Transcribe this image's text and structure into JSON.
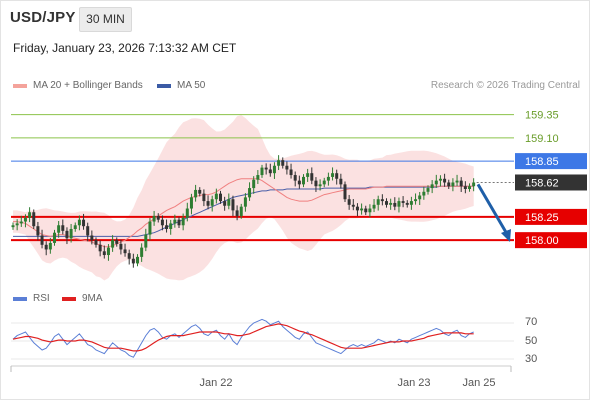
{
  "header": {
    "pair": "USD/JPY",
    "timeframe": "30 MIN"
  },
  "timestamp": "Friday, January 23, 2026 7:13:32 AM CET",
  "legend": {
    "ma20": "MA 20 + Bollinger Bands",
    "ma50": "MA 50"
  },
  "credit": "Research © 2026 Trading Central",
  "rsi_legend": {
    "rsi": "RSI",
    "ma9": "9MA"
  },
  "colors": {
    "bull": "#2e7d32",
    "bear": "#333333",
    "ma20": "#f08080",
    "ma50": "#4a5ea8",
    "resistance": "#3d78e6",
    "support": "#e60000",
    "target": "#8bc34a",
    "arrow": "#1f5fa8"
  },
  "chart_data": [
    {
      "type": "candlestick",
      "title": "USD/JPY 30 MIN",
      "ylim": [
        157.55,
        159.55
      ],
      "x_ticks": [
        "Jan 22",
        "Jan 23",
        "Jan 25"
      ],
      "levels": [
        {
          "value": 159.35,
          "label": "159.35",
          "kind": "target"
        },
        {
          "value": 159.1,
          "label": "159.10",
          "kind": "target"
        },
        {
          "value": 158.85,
          "label": "158.85",
          "kind": "resistance"
        },
        {
          "value": 158.62,
          "label": "158.62",
          "kind": "last"
        },
        {
          "value": 158.25,
          "label": "158.25",
          "kind": "support"
        },
        {
          "value": 158.0,
          "label": "158.00",
          "kind": "support"
        }
      ],
      "arrow": {
        "from": 158.6,
        "to": 157.98,
        "direction": "down"
      },
      "series": [
        {
          "name": "Price",
          "values": [
            158.16,
            158.18,
            158.2,
            158.24,
            158.3,
            158.15,
            158.05,
            157.95,
            157.9,
            157.97,
            158.08,
            158.16,
            158.1,
            158.02,
            158.12,
            158.16,
            158.22,
            158.15,
            158.05,
            158.0,
            157.95,
            157.88,
            157.84,
            157.92,
            158.0,
            157.96,
            157.9,
            157.86,
            157.8,
            157.75,
            157.82,
            157.92,
            158.06,
            158.2,
            158.26,
            158.22,
            158.16,
            158.12,
            158.18,
            158.22,
            158.16,
            158.24,
            158.34,
            158.46,
            158.54,
            158.5,
            158.42,
            158.37,
            158.44,
            158.5,
            158.42,
            158.37,
            158.44,
            158.32,
            158.26,
            158.36,
            158.46,
            158.56,
            158.65,
            158.7,
            158.78,
            158.76,
            158.72,
            158.8,
            158.86,
            158.8,
            158.76,
            158.7,
            158.64,
            158.6,
            158.68,
            158.72,
            158.64,
            158.58,
            158.6,
            158.64,
            158.68,
            158.72,
            158.66,
            158.6,
            158.44,
            158.38,
            158.36,
            158.32,
            158.34,
            158.3,
            158.34,
            158.38,
            158.44,
            158.42,
            158.38,
            158.4,
            158.36,
            158.42,
            158.4,
            158.38,
            158.42,
            158.44,
            158.48,
            158.52,
            158.56,
            158.6,
            158.64,
            158.66,
            158.62,
            158.58,
            158.62,
            158.64,
            158.58,
            158.55,
            158.58,
            158.62
          ]
        },
        {
          "name": "MA 20",
          "values": [
            158.2,
            158.2,
            158.19,
            158.18,
            158.15,
            158.12,
            158.09,
            158.06,
            158.05,
            158.04,
            158.05,
            158.06,
            158.06,
            158.05,
            158.03,
            158.02,
            158.01,
            158.0,
            157.99,
            157.98,
            157.96,
            157.95,
            157.93,
            157.93,
            157.94,
            157.96,
            157.98,
            158.0,
            158.03,
            158.06,
            158.1,
            158.13,
            158.17,
            158.2,
            158.23,
            158.26,
            158.29,
            158.32,
            158.34,
            158.36,
            158.39,
            158.42,
            158.44,
            158.46,
            158.47,
            158.48,
            158.49,
            158.49,
            158.5,
            158.52,
            158.55,
            158.58,
            158.61,
            158.63,
            158.65,
            158.66,
            158.66,
            158.66,
            158.66,
            158.66,
            158.64,
            158.61,
            158.58,
            158.55,
            158.52,
            158.49,
            158.46,
            158.44,
            158.43,
            158.42,
            158.42,
            158.42,
            158.43,
            158.45,
            158.47,
            158.49,
            158.5,
            158.51,
            158.52,
            158.53,
            158.54,
            158.55,
            158.55,
            158.55,
            158.55,
            158.55,
            158.56,
            158.57,
            158.57,
            158.57,
            158.58,
            158.58,
            158.58,
            158.58,
            158.58,
            158.58,
            158.58,
            158.58,
            158.58,
            158.58,
            158.58,
            158.58,
            158.58,
            158.58,
            158.58,
            158.58,
            158.58,
            158.58,
            158.58,
            158.58,
            158.58,
            158.58
          ]
        },
        {
          "name": "MA 50",
          "values": [
            158.04,
            158.04,
            158.04,
            158.04,
            158.04,
            158.04,
            158.04,
            158.04,
            158.04,
            158.04,
            158.04,
            158.04,
            158.04,
            158.04,
            158.04,
            158.04,
            158.04,
            158.04,
            158.04,
            158.04,
            158.04,
            158.04,
            158.04,
            158.04,
            158.04,
            158.04,
            158.04,
            158.04,
            158.04,
            158.04,
            158.04,
            158.05,
            158.06,
            158.07,
            158.08,
            158.1,
            158.12,
            158.14,
            158.16,
            158.18,
            158.2,
            158.22,
            158.24,
            158.26,
            158.28,
            158.3,
            158.32,
            158.34,
            158.36,
            158.38,
            158.4,
            158.42,
            158.44,
            158.46,
            158.47,
            158.48,
            158.49,
            158.5,
            158.51,
            158.52,
            158.53,
            158.53,
            158.54,
            158.54,
            158.54,
            158.54,
            158.55,
            158.55,
            158.55,
            158.55,
            158.55,
            158.55,
            158.55,
            158.55,
            158.55,
            158.56,
            158.56,
            158.56,
            158.56,
            158.56,
            158.56,
            158.56,
            158.56,
            158.56,
            158.56,
            158.56,
            158.57,
            158.57,
            158.57,
            158.57,
            158.57,
            158.57,
            158.57,
            158.57,
            158.57,
            158.57,
            158.57,
            158.57,
            158.57,
            158.57,
            158.57,
            158.57,
            158.57,
            158.58,
            158.58,
            158.58,
            158.58,
            158.58,
            158.58,
            158.58,
            158.58,
            158.58
          ]
        }
      ]
    },
    {
      "type": "line",
      "title": "RSI",
      "ylim": [
        20,
        80
      ],
      "y_ticks": [
        "70",
        "50",
        "30"
      ],
      "series": [
        {
          "name": "RSI",
          "values": [
            52,
            56,
            58,
            60,
            54,
            48,
            44,
            40,
            42,
            48,
            55,
            58,
            52,
            46,
            50,
            54,
            58,
            52,
            46,
            44,
            40,
            38,
            36,
            42,
            48,
            44,
            40,
            38,
            34,
            32,
            40,
            48,
            56,
            62,
            64,
            60,
            54,
            52,
            56,
            58,
            54,
            58,
            62,
            66,
            68,
            64,
            58,
            56,
            60,
            62,
            56,
            52,
            58,
            50,
            46,
            54,
            60,
            66,
            70,
            72,
            74,
            72,
            68,
            70,
            72,
            66,
            62,
            58,
            54,
            52,
            58,
            60,
            54,
            48,
            46,
            44,
            42,
            40,
            38,
            36,
            40,
            44,
            46,
            44,
            46,
            44,
            46,
            48,
            52,
            50,
            48,
            50,
            48,
            52,
            50,
            48,
            52,
            54,
            56,
            58,
            60,
            62,
            64,
            62,
            58,
            56,
            60,
            62,
            56,
            54,
            58,
            60
          ]
        },
        {
          "name": "9MA",
          "values": [
            52,
            53,
            54,
            55,
            55,
            54,
            53,
            51,
            50,
            49,
            50,
            51,
            51,
            50,
            50,
            50,
            51,
            51,
            50,
            49,
            47,
            45,
            43,
            42,
            42,
            42,
            42,
            41,
            40,
            39,
            39,
            40,
            42,
            45,
            48,
            51,
            53,
            55,
            56,
            56,
            56,
            56,
            57,
            58,
            59,
            60,
            60,
            60,
            60,
            60,
            59,
            58,
            58,
            57,
            56,
            56,
            57,
            58,
            60,
            62,
            64,
            66,
            67,
            68,
            69,
            68,
            67,
            65,
            63,
            61,
            60,
            58,
            57,
            55,
            53,
            51,
            49,
            47,
            45,
            43,
            42,
            42,
            42,
            42,
            42,
            43,
            44,
            45,
            46,
            47,
            48,
            49,
            49,
            49,
            50,
            50,
            50,
            51,
            52,
            53,
            55,
            56,
            57,
            58,
            59,
            59,
            59,
            59,
            59,
            58,
            58,
            58
          ]
        }
      ]
    }
  ]
}
